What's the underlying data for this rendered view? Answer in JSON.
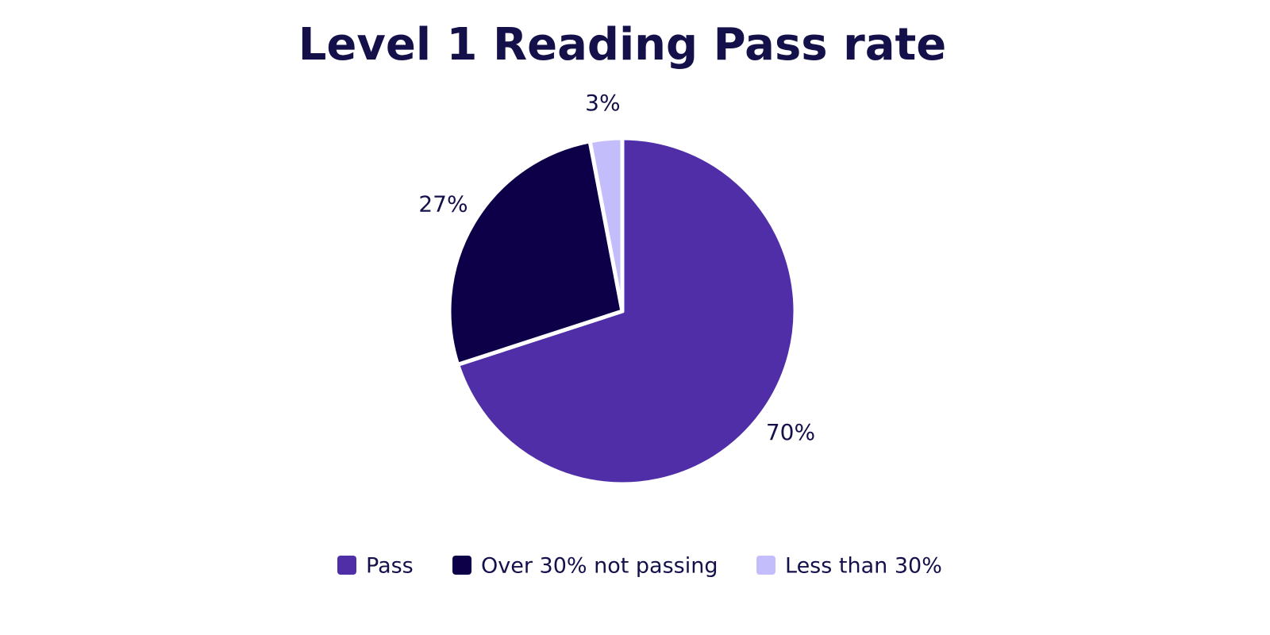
{
  "chart_data": {
    "type": "pie",
    "title": "Level 1 Reading Pass rate",
    "categories": [
      "Pass",
      "Over 30% not passing",
      "Less than 30%"
    ],
    "values": [
      70,
      27,
      3
    ],
    "value_labels": [
      "70%",
      "27%",
      "3%"
    ],
    "colors": [
      "#4f2ea8",
      "#0e0048",
      "#c4bdfc"
    ],
    "legend": "bottom"
  }
}
